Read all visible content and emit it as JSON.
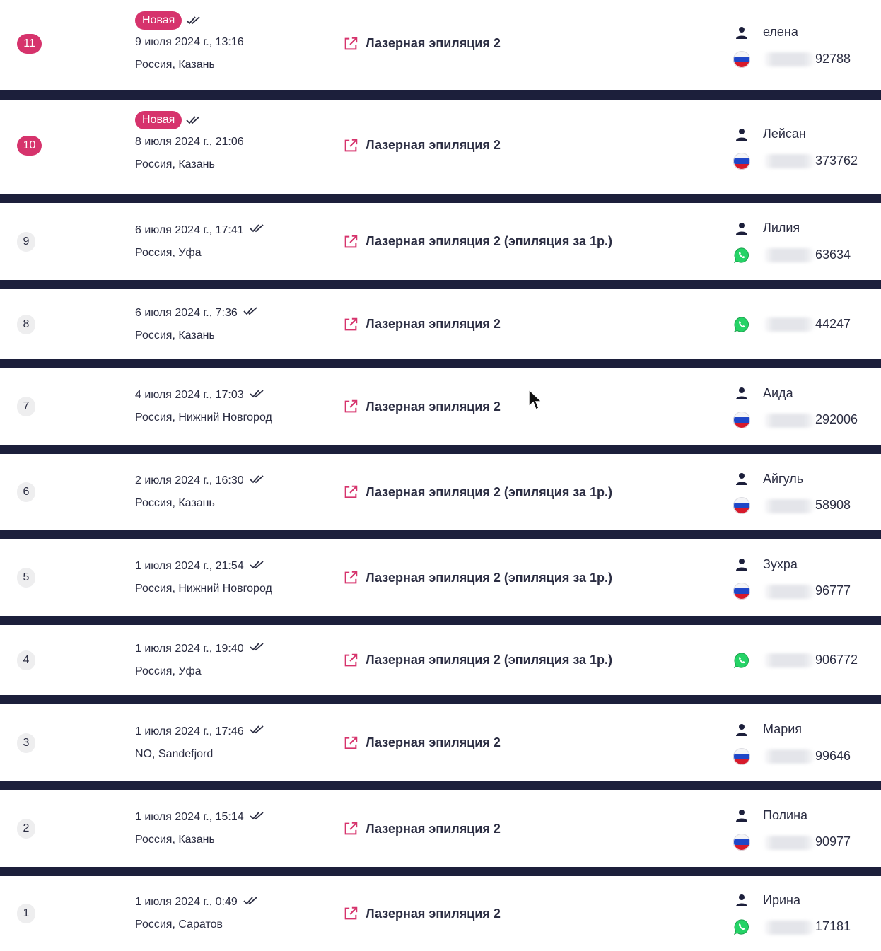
{
  "rows": [
    {
      "number": "11",
      "is_new": true,
      "badge": "Новая",
      "date": "9 июля 2024 г., 13:16",
      "location": "Россия, Казань",
      "service": "Лазерная эпиляция 2",
      "name": "елена",
      "channel": "flag-ru",
      "phone_visible": "92788"
    },
    {
      "number": "10",
      "is_new": true,
      "badge": "Новая",
      "date": "8 июля 2024 г., 21:06",
      "location": "Россия, Казань",
      "service": "Лазерная эпиляция 2",
      "name": "Лейсан",
      "channel": "flag-ru",
      "phone_visible": "373762"
    },
    {
      "number": "9",
      "is_new": false,
      "date": "6 июля 2024 г., 17:41",
      "location": "Россия, Уфа",
      "service": "Лазерная эпиляция 2 (эпиляция за 1р.)",
      "name": "Лилия",
      "channel": "whatsapp",
      "phone_visible": "63634"
    },
    {
      "number": "8",
      "is_new": false,
      "date": "6 июля 2024 г., 7:36",
      "location": "Россия, Казань",
      "service": "Лазерная эпиляция 2",
      "name": "",
      "channel": "whatsapp",
      "phone_visible": "44247"
    },
    {
      "number": "7",
      "is_new": false,
      "date": "4 июля 2024 г., 17:03",
      "location": "Россия, Нижний Новгород",
      "service": "Лазерная эпиляция 2",
      "name": "Аида",
      "channel": "flag-ru",
      "phone_visible": "292006"
    },
    {
      "number": "6",
      "is_new": false,
      "date": "2 июля 2024 г., 16:30",
      "location": "Россия, Казань",
      "service": "Лазерная эпиляция 2 (эпиляция за 1р.)",
      "name": "Айгуль",
      "channel": "flag-ru",
      "phone_visible": "58908"
    },
    {
      "number": "5",
      "is_new": false,
      "date": "1 июля 2024 г., 21:54",
      "location": "Россия, Нижний Новгород",
      "service": "Лазерная эпиляция 2 (эпиляция за 1р.)",
      "name": "Зухра",
      "channel": "flag-ru",
      "phone_visible": "96777"
    },
    {
      "number": "4",
      "is_new": false,
      "date": "1 июля 2024 г., 19:40",
      "location": "Россия, Уфа",
      "service": "Лазерная эпиляция 2 (эпиляция за 1р.)",
      "name": "",
      "channel": "whatsapp",
      "phone_visible": "906772"
    },
    {
      "number": "3",
      "is_new": false,
      "date": "1 июля 2024 г., 17:46",
      "location": "NO, Sandefjord",
      "service": "Лазерная эпиляция 2",
      "name": "Мария",
      "channel": "flag-ru",
      "phone_visible": "99646"
    },
    {
      "number": "2",
      "is_new": false,
      "date": "1 июля 2024 г., 15:14",
      "location": "Россия, Казань",
      "service": "Лазерная эпиляция 2",
      "name": "Полина",
      "channel": "flag-ru",
      "phone_visible": "90977"
    },
    {
      "number": "1",
      "is_new": false,
      "date": "1 июля 2024 г., 0:49",
      "location": "Россия, Саратов",
      "service": "Лазерная эпиляция 2",
      "name": "Ирина",
      "channel": "whatsapp",
      "phone_visible": "17181"
    }
  ],
  "colors": {
    "accent": "#d6336c",
    "separator": "#1c1f3b",
    "text": "#2b2d42",
    "whatsapp": "#25d366"
  }
}
